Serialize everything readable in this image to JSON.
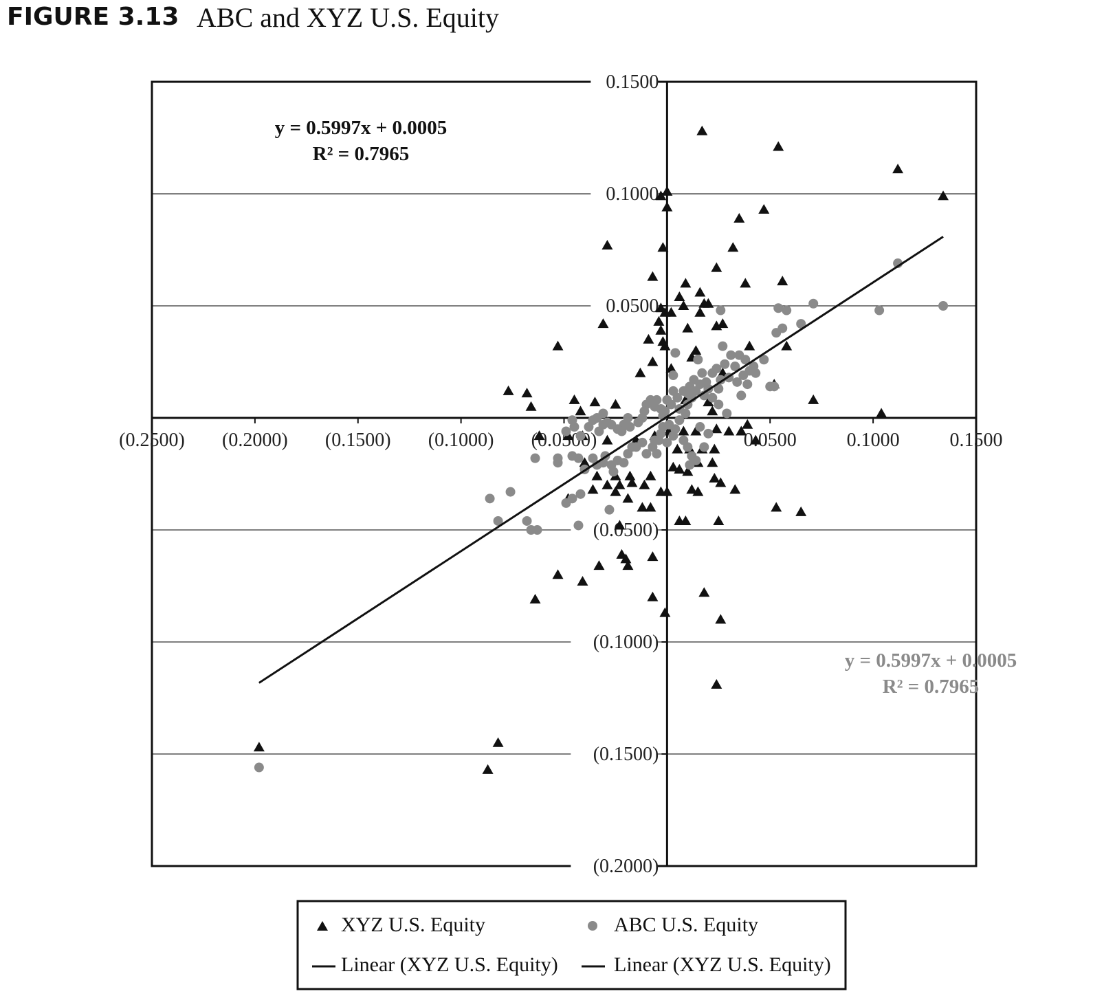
{
  "figure": {
    "label": "FIGURE 3.13",
    "title": "ABC and XYZ U.S. Equity"
  },
  "chart_data": {
    "type": "scatter",
    "title": "ABC and XYZ U.S. Equity",
    "xlabel": "",
    "ylabel": "",
    "xlim": [
      -0.25,
      0.15
    ],
    "ylim": [
      -0.2,
      0.15
    ],
    "x_ticks": [
      -0.25,
      -0.2,
      -0.15,
      -0.1,
      -0.05,
      0.0,
      0.05,
      0.1,
      0.15
    ],
    "x_tick_labels": [
      "(0.2500)",
      "(0.2000)",
      "(0.1500)",
      "(0.1000)",
      "(0.0500)",
      "",
      "0.0500",
      "0.1000",
      "0.1500"
    ],
    "y_ticks": [
      0.15,
      0.1,
      0.05,
      -0.05,
      -0.1,
      -0.15,
      -0.2
    ],
    "y_tick_labels": [
      "0.1500",
      "0.1000",
      "0.0500",
      "(0.0500)",
      "(0.1000)",
      "(0.1500)",
      "(0.2000)"
    ],
    "grid": "horizontal",
    "legend_position": "bottom",
    "annotations": [
      {
        "line1": "y = 0.5997x + 0.0005",
        "line2": "R² = 0.7965",
        "color": "#111111",
        "placement": "upper-left"
      },
      {
        "line1": "y = 0.5997x + 0.0005",
        "line2": "R² = 0.7965",
        "color": "#8a8a8a",
        "placement": "lower-right"
      }
    ],
    "trendline": {
      "slope": 0.5997,
      "intercept": 0.0005,
      "x_range": [
        -0.198,
        0.134
      ]
    },
    "legend": [
      {
        "label": "XYZ U.S. Equity",
        "marker": "triangle",
        "color": "#111111"
      },
      {
        "label": "ABC U.S. Equity",
        "marker": "circle",
        "color": "#8a8a8a"
      },
      {
        "label": "Linear (XYZ U.S. Equity)",
        "marker": "line",
        "color": "#111111"
      },
      {
        "label": "Linear (XYZ U.S. Equity)",
        "marker": "line",
        "color": "#111111"
      }
    ],
    "series": [
      {
        "name": "XYZ U.S. Equity",
        "marker": "triangle",
        "color": "#111111",
        "points": [
          [
            0.017,
            0.128
          ],
          [
            0.054,
            0.121
          ],
          [
            0.112,
            0.111
          ],
          [
            0.134,
            0.099
          ],
          [
            -0.003,
            0.099
          ],
          [
            0.0,
            0.101
          ],
          [
            0.0,
            0.094
          ],
          [
            0.047,
            0.093
          ],
          [
            0.035,
            0.089
          ],
          [
            -0.029,
            0.077
          ],
          [
            -0.002,
            0.076
          ],
          [
            0.032,
            0.076
          ],
          [
            0.024,
            0.067
          ],
          [
            -0.007,
            0.063
          ],
          [
            0.009,
            0.06
          ],
          [
            0.038,
            0.06
          ],
          [
            0.056,
            0.061
          ],
          [
            0.016,
            0.056
          ],
          [
            0.006,
            0.054
          ],
          [
            0.008,
            0.05
          ],
          [
            0.018,
            0.051
          ],
          [
            0.02,
            0.051
          ],
          [
            0.016,
            0.047
          ],
          [
            -0.003,
            0.049
          ],
          [
            -0.001,
            0.047
          ],
          [
            0.002,
            0.047
          ],
          [
            -0.004,
            0.043
          ],
          [
            -0.031,
            0.042
          ],
          [
            0.01,
            0.04
          ],
          [
            0.024,
            0.041
          ],
          [
            0.027,
            0.042
          ],
          [
            -0.003,
            0.039
          ],
          [
            -0.009,
            0.035
          ],
          [
            -0.002,
            0.034
          ],
          [
            -0.001,
            0.032
          ],
          [
            -0.053,
            0.032
          ],
          [
            0.04,
            0.032
          ],
          [
            0.058,
            0.032
          ],
          [
            0.014,
            0.03
          ],
          [
            0.012,
            0.027
          ],
          [
            -0.007,
            0.025
          ],
          [
            0.002,
            0.022
          ],
          [
            -0.013,
            0.02
          ],
          [
            0.027,
            0.02
          ],
          [
            0.052,
            0.015
          ],
          [
            0.071,
            0.008
          ],
          [
            0.104,
            0.002
          ],
          [
            -0.077,
            0.012
          ],
          [
            -0.068,
            0.011
          ],
          [
            -0.066,
            0.005
          ],
          [
            -0.045,
            0.008
          ],
          [
            -0.035,
            0.007
          ],
          [
            -0.025,
            0.006
          ],
          [
            -0.042,
            0.003
          ],
          [
            0.009,
            0.008
          ],
          [
            0.014,
            0.012
          ],
          [
            0.02,
            0.007
          ],
          [
            0.022,
            0.003
          ],
          [
            -0.062,
            -0.008
          ],
          [
            -0.048,
            -0.008
          ],
          [
            -0.041,
            -0.008
          ],
          [
            -0.029,
            -0.01
          ],
          [
            -0.015,
            -0.01
          ],
          [
            -0.006,
            -0.008
          ],
          [
            0.001,
            -0.006
          ],
          [
            0.008,
            -0.006
          ],
          [
            0.014,
            -0.006
          ],
          [
            0.024,
            -0.005
          ],
          [
            0.03,
            -0.006
          ],
          [
            0.036,
            -0.006
          ],
          [
            0.039,
            -0.003
          ],
          [
            0.043,
            -0.01
          ],
          [
            0.005,
            -0.014
          ],
          [
            0.011,
            -0.014
          ],
          [
            0.017,
            -0.014
          ],
          [
            0.023,
            -0.014
          ],
          [
            -0.04,
            -0.02
          ],
          [
            -0.034,
            -0.026
          ],
          [
            -0.025,
            -0.026
          ],
          [
            -0.018,
            -0.026
          ],
          [
            -0.008,
            -0.026
          ],
          [
            0.006,
            -0.023
          ],
          [
            0.015,
            -0.02
          ],
          [
            0.022,
            -0.02
          ],
          [
            -0.029,
            -0.03
          ],
          [
            -0.023,
            -0.03
          ],
          [
            -0.017,
            -0.029
          ],
          [
            -0.011,
            -0.03
          ],
          [
            0.003,
            -0.022
          ],
          [
            0.01,
            -0.024
          ],
          [
            -0.048,
            -0.036
          ],
          [
            -0.036,
            -0.032
          ],
          [
            -0.025,
            -0.033
          ],
          [
            -0.003,
            -0.033
          ],
          [
            0.0,
            -0.033
          ],
          [
            0.015,
            -0.033
          ],
          [
            0.023,
            -0.027
          ],
          [
            0.026,
            -0.029
          ],
          [
            0.033,
            -0.032
          ],
          [
            -0.019,
            -0.036
          ],
          [
            -0.012,
            -0.04
          ],
          [
            0.053,
            -0.04
          ],
          [
            0.065,
            -0.042
          ],
          [
            0.006,
            -0.046
          ],
          [
            0.009,
            -0.046
          ],
          [
            0.025,
            -0.046
          ],
          [
            -0.023,
            -0.048
          ],
          [
            -0.022,
            -0.061
          ],
          [
            -0.02,
            -0.063
          ],
          [
            -0.019,
            -0.066
          ],
          [
            -0.033,
            -0.066
          ],
          [
            -0.053,
            -0.07
          ],
          [
            -0.041,
            -0.073
          ],
          [
            -0.007,
            -0.062
          ],
          [
            -0.007,
            -0.08
          ],
          [
            -0.001,
            -0.087
          ],
          [
            -0.064,
            -0.081
          ],
          [
            0.018,
            -0.078
          ],
          [
            0.026,
            -0.09
          ],
          [
            0.024,
            -0.119
          ],
          [
            -0.198,
            -0.147
          ],
          [
            -0.082,
            -0.145
          ],
          [
            -0.087,
            -0.157
          ],
          [
            -0.008,
            -0.04
          ],
          [
            0.012,
            -0.032
          ]
        ]
      },
      {
        "name": "ABC U.S. Equity",
        "marker": "circle",
        "color": "#8a8a8a",
        "points": [
          [
            0.112,
            0.069
          ],
          [
            0.071,
            0.051
          ],
          [
            0.134,
            0.05
          ],
          [
            0.103,
            0.048
          ],
          [
            0.026,
            0.048
          ],
          [
            0.054,
            0.049
          ],
          [
            0.058,
            0.048
          ],
          [
            0.065,
            0.042
          ],
          [
            0.056,
            0.04
          ],
          [
            0.053,
            0.038
          ],
          [
            0.027,
            0.032
          ],
          [
            0.038,
            0.026
          ],
          [
            0.047,
            0.026
          ],
          [
            0.035,
            0.028
          ],
          [
            0.04,
            0.021
          ],
          [
            0.042,
            0.023
          ],
          [
            0.043,
            0.02
          ],
          [
            0.031,
            0.028
          ],
          [
            0.033,
            0.023
          ],
          [
            0.028,
            0.024
          ],
          [
            0.024,
            0.022
          ],
          [
            0.022,
            0.02
          ],
          [
            0.026,
            0.017
          ],
          [
            0.03,
            0.018
          ],
          [
            0.034,
            0.016
          ],
          [
            0.039,
            0.015
          ],
          [
            0.037,
            0.019
          ],
          [
            0.025,
            0.013
          ],
          [
            0.02,
            0.013
          ],
          [
            0.019,
            0.016
          ],
          [
            0.016,
            0.015
          ],
          [
            0.014,
            0.012
          ],
          [
            0.013,
            0.017
          ],
          [
            0.011,
            0.014
          ],
          [
            0.01,
            0.011
          ],
          [
            0.008,
            0.012
          ],
          [
            0.005,
            0.009
          ],
          [
            0.003,
            0.012
          ],
          [
            0.003,
            0.019
          ],
          [
            0.004,
            0.029
          ],
          [
            0.015,
            0.026
          ],
          [
            0.017,
            0.02
          ],
          [
            0.022,
            0.009
          ],
          [
            0.025,
            0.006
          ],
          [
            0.029,
            0.002
          ],
          [
            0.036,
            0.01
          ],
          [
            0.05,
            0.014
          ],
          [
            0.052,
            0.014
          ],
          [
            0.018,
            0.01
          ],
          [
            0.012,
            0.009
          ],
          [
            0.01,
            0.006
          ],
          [
            0.009,
            0.002
          ],
          [
            0.006,
            0.004
          ],
          [
            0.002,
            0.006
          ],
          [
            0.0,
            0.008
          ],
          [
            -0.001,
            0.003
          ],
          [
            -0.002,
            0.001
          ],
          [
            -0.003,
            0.004
          ],
          [
            -0.005,
            0.008
          ],
          [
            -0.006,
            0.005
          ],
          [
            -0.008,
            0.008
          ],
          [
            -0.01,
            0.006
          ],
          [
            -0.011,
            0.003
          ],
          [
            -0.012,
            0.0
          ],
          [
            -0.014,
            -0.002
          ],
          [
            -0.018,
            -0.004
          ],
          [
            -0.019,
            0.0
          ],
          [
            -0.021,
            -0.003
          ],
          [
            -0.022,
            -0.006
          ],
          [
            -0.024,
            -0.005
          ],
          [
            -0.027,
            -0.003
          ],
          [
            -0.029,
            -0.002
          ],
          [
            -0.031,
            -0.003
          ],
          [
            -0.033,
            -0.006
          ],
          [
            -0.034,
            0.0
          ],
          [
            -0.031,
            0.002
          ],
          [
            -0.036,
            -0.001
          ],
          [
            -0.038,
            -0.004
          ],
          [
            -0.042,
            -0.008
          ],
          [
            -0.045,
            -0.004
          ],
          [
            -0.046,
            -0.001
          ],
          [
            -0.049,
            -0.006
          ],
          [
            -0.053,
            -0.018
          ],
          [
            -0.053,
            -0.02
          ],
          [
            -0.046,
            -0.017
          ],
          [
            -0.043,
            -0.018
          ],
          [
            -0.04,
            -0.023
          ],
          [
            -0.036,
            -0.018
          ],
          [
            -0.034,
            -0.021
          ],
          [
            -0.031,
            -0.02
          ],
          [
            -0.03,
            -0.017
          ],
          [
            -0.027,
            -0.021
          ],
          [
            -0.026,
            -0.024
          ],
          [
            -0.024,
            -0.019
          ],
          [
            -0.021,
            -0.02
          ],
          [
            -0.019,
            -0.016
          ],
          [
            -0.017,
            -0.013
          ],
          [
            -0.015,
            -0.013
          ],
          [
            -0.012,
            -0.011
          ],
          [
            -0.01,
            -0.016
          ],
          [
            -0.007,
            -0.013
          ],
          [
            -0.006,
            -0.01
          ],
          [
            -0.004,
            -0.01
          ],
          [
            -0.003,
            -0.007
          ],
          [
            -0.002,
            -0.004
          ],
          [
            0.001,
            -0.003
          ],
          [
            0.004,
            -0.005
          ],
          [
            0.006,
            -0.001
          ],
          [
            0.008,
            -0.01
          ],
          [
            0.01,
            -0.013
          ],
          [
            0.012,
            -0.017
          ],
          [
            0.014,
            -0.019
          ],
          [
            0.018,
            -0.013
          ],
          [
            0.011,
            -0.021
          ],
          [
            -0.064,
            -0.018
          ],
          [
            -0.049,
            -0.038
          ],
          [
            -0.046,
            -0.036
          ],
          [
            -0.042,
            -0.034
          ],
          [
            -0.028,
            -0.041
          ],
          [
            -0.086,
            -0.036
          ],
          [
            -0.076,
            -0.033
          ],
          [
            -0.082,
            -0.046
          ],
          [
            -0.068,
            -0.046
          ],
          [
            -0.066,
            -0.05
          ],
          [
            -0.063,
            -0.05
          ],
          [
            -0.043,
            -0.048
          ],
          [
            -0.198,
            -0.156
          ],
          [
            -0.005,
            -0.016
          ],
          [
            0.0,
            -0.011
          ],
          [
            0.003,
            -0.008
          ],
          [
            0.016,
            -0.004
          ],
          [
            0.02,
            -0.007
          ]
        ]
      }
    ]
  },
  "legend_box": {
    "items": [
      "XYZ U.S. Equity",
      "ABC U.S. Equity",
      "Linear (XYZ U.S. Equity)",
      "Linear (XYZ U.S. Equity)"
    ]
  }
}
